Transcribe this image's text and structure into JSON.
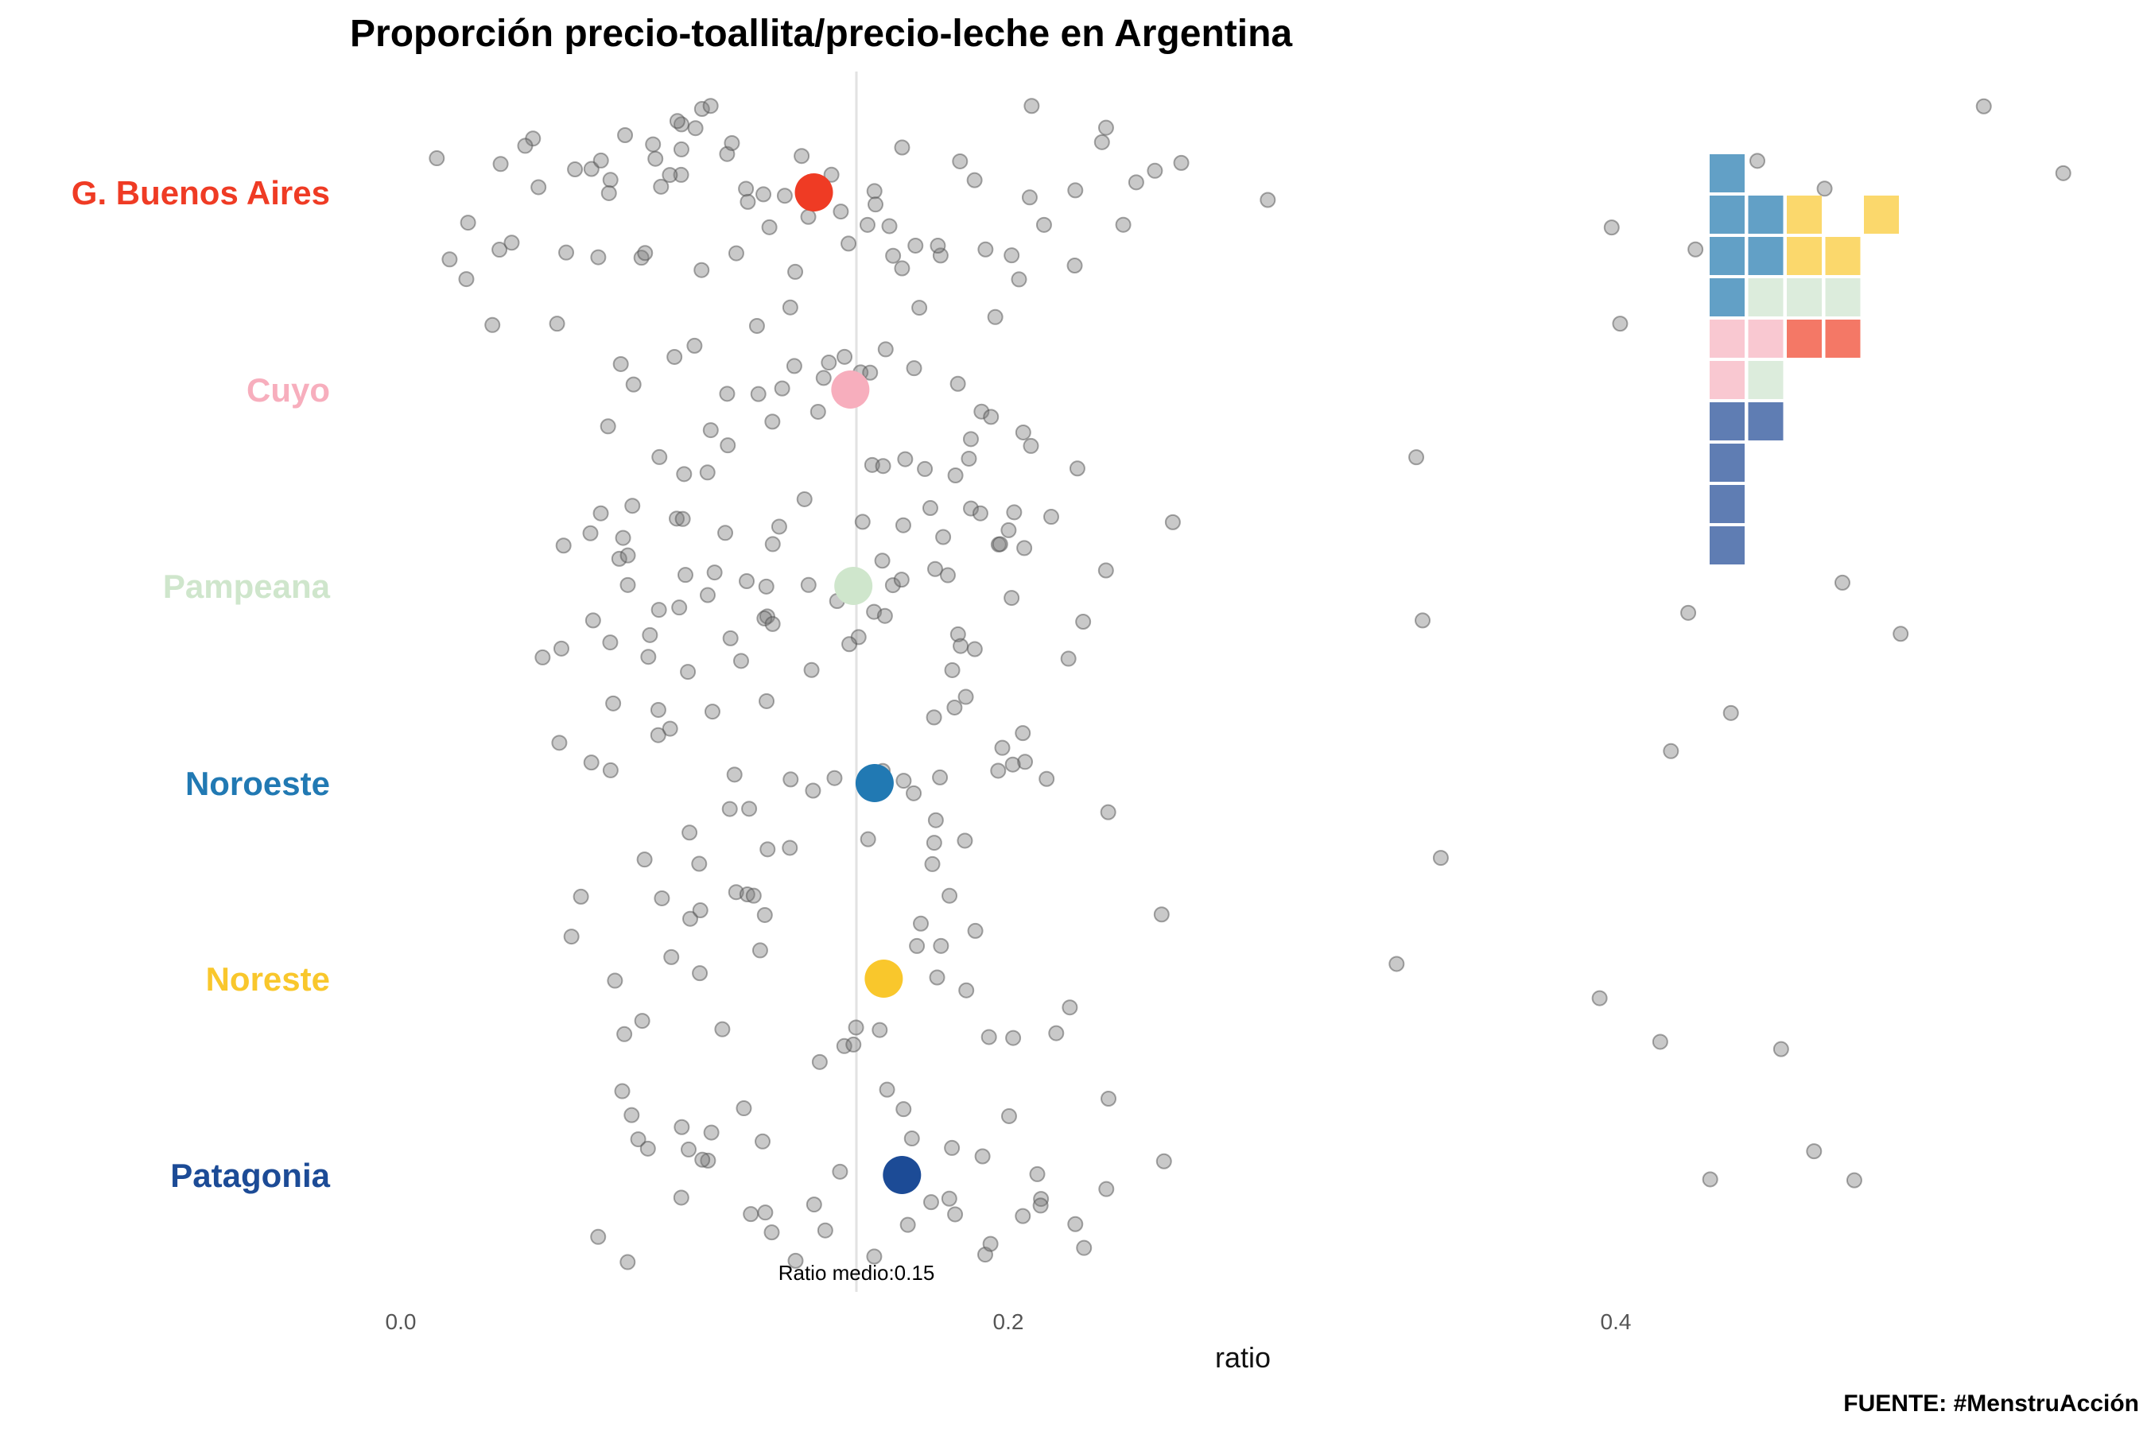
{
  "chart_data": {
    "type": "scatter",
    "title": "Proporción precio-toallita/precio-leche en Argentina",
    "xlabel": "ratio",
    "ylabel": "",
    "xlim": [
      0.0,
      0.57
    ],
    "x_ticks": [
      "0.0",
      "0.2",
      "0.4"
    ],
    "x_tick_values": [
      0.0,
      0.2,
      0.4
    ],
    "grid": false,
    "reference_line": {
      "value": 0.15,
      "label": "Ratio medio:0.15"
    },
    "source": "FUENTE: #MenstruAcción",
    "regions": [
      {
        "name": "G. Buenos Aires",
        "color": "#ef3b24",
        "mean": 0.136,
        "values": [
          0.01,
          0.02,
          0.02,
          0.02,
          0.03,
          0.03,
          0.04,
          0.04,
          0.04,
          0.05,
          0.05,
          0.06,
          0.06,
          0.06,
          0.07,
          0.07,
          0.07,
          0.07,
          0.08,
          0.08,
          0.08,
          0.08,
          0.08,
          0.09,
          0.09,
          0.09,
          0.09,
          0.09,
          0.1,
          0.1,
          0.1,
          0.1,
          0.11,
          0.11,
          0.11,
          0.11,
          0.12,
          0.12,
          0.12,
          0.13,
          0.13,
          0.13,
          0.14,
          0.14,
          0.14,
          0.15,
          0.15,
          0.15,
          0.16,
          0.16,
          0.16,
          0.17,
          0.17,
          0.17,
          0.18,
          0.18,
          0.19,
          0.19,
          0.19,
          0.2,
          0.2,
          0.21,
          0.21,
          0.21,
          0.22,
          0.22,
          0.23,
          0.23,
          0.24,
          0.24,
          0.25,
          0.26,
          0.29,
          0.393,
          0.426,
          0.443,
          0.469,
          0.478,
          0.523,
          0.546
        ]
      },
      {
        "name": "Cuyo",
        "color": "#f7aebd",
        "mean": 0.148,
        "values": [
          0.035,
          0.056,
          0.065,
          0.07,
          0.08,
          0.085,
          0.09,
          0.095,
          0.1,
          0.1,
          0.105,
          0.11,
          0.11,
          0.115,
          0.12,
          0.12,
          0.125,
          0.13,
          0.13,
          0.135,
          0.14,
          0.14,
          0.145,
          0.15,
          0.15,
          0.155,
          0.16,
          0.16,
          0.165,
          0.17,
          0.17,
          0.175,
          0.18,
          0.18,
          0.185,
          0.19,
          0.19,
          0.195,
          0.2,
          0.2,
          0.21,
          0.22,
          0.334,
          0.405
        ]
      },
      {
        "name": "Pampeana",
        "color": "#cfe6cc",
        "mean": 0.149,
        "values": [
          0.05,
          0.05,
          0.055,
          0.06,
          0.06,
          0.065,
          0.07,
          0.07,
          0.075,
          0.075,
          0.08,
          0.08,
          0.08,
          0.085,
          0.085,
          0.09,
          0.09,
          0.09,
          0.095,
          0.1,
          0.1,
          0.1,
          0.105,
          0.11,
          0.11,
          0.115,
          0.115,
          0.12,
          0.12,
          0.12,
          0.125,
          0.13,
          0.13,
          0.135,
          0.14,
          0.14,
          0.145,
          0.145,
          0.15,
          0.15,
          0.155,
          0.16,
          0.16,
          0.165,
          0.17,
          0.17,
          0.175,
          0.175,
          0.18,
          0.18,
          0.18,
          0.185,
          0.19,
          0.19,
          0.195,
          0.195,
          0.2,
          0.2,
          0.2,
          0.205,
          0.21,
          0.21,
          0.22,
          0.23,
          0.23,
          0.26,
          0.34,
          0.42,
          0.478,
          0.497
        ]
      },
      {
        "name": "Noroeste",
        "color": "#2179b3",
        "mean": 0.156,
        "values": [
          0.058,
          0.065,
          0.07,
          0.075,
          0.08,
          0.08,
          0.085,
          0.09,
          0.09,
          0.1,
          0.105,
          0.11,
          0.11,
          0.115,
          0.12,
          0.12,
          0.125,
          0.13,
          0.14,
          0.145,
          0.15,
          0.155,
          0.16,
          0.16,
          0.165,
          0.17,
          0.17,
          0.175,
          0.18,
          0.18,
          0.185,
          0.19,
          0.19,
          0.195,
          0.2,
          0.2,
          0.2,
          0.205,
          0.21,
          0.23,
          0.34,
          0.415,
          0.435
        ]
      },
      {
        "name": "Noreste",
        "color": "#f9c72c",
        "mean": 0.159,
        "values": [
          0.055,
          0.06,
          0.065,
          0.07,
          0.08,
          0.085,
          0.09,
          0.095,
          0.1,
          0.1,
          0.105,
          0.11,
          0.11,
          0.115,
          0.12,
          0.125,
          0.14,
          0.145,
          0.15,
          0.155,
          0.16,
          0.16,
          0.165,
          0.17,
          0.175,
          0.18,
          0.18,
          0.185,
          0.19,
          0.19,
          0.2,
          0.22,
          0.225,
          0.247,
          0.327,
          0.39,
          0.418,
          0.457
        ]
      },
      {
        "name": "Patagonia",
        "color": "#1c4b96",
        "mean": 0.165,
        "values": [
          0.063,
          0.07,
          0.07,
          0.075,
          0.08,
          0.085,
          0.09,
          0.09,
          0.095,
          0.1,
          0.1,
          0.105,
          0.11,
          0.115,
          0.12,
          0.12,
          0.125,
          0.13,
          0.135,
          0.14,
          0.145,
          0.15,
          0.155,
          0.16,
          0.165,
          0.17,
          0.17,
          0.175,
          0.18,
          0.185,
          0.19,
          0.19,
          0.195,
          0.2,
          0.2,
          0.205,
          0.21,
          0.215,
          0.22,
          0.225,
          0.23,
          0.235,
          0.25,
          0.436,
          0.466,
          0.482
        ]
      }
    ],
    "waffle": {
      "columns": 5,
      "rows": 10,
      "colors": {
        "B": "#62a0c6",
        "Y": "#fbd86c",
        "G": "#dcecdc",
        "P": "#f9c8d1",
        "R": "#f47866",
        "D": "#5f7db3"
      },
      "grid": [
        "B....",
        "BBY.Y",
        "BBYY.",
        "BGGG.",
        "PPRR.",
        "PG...",
        "DD...",
        "D....",
        "D....",
        "D...."
      ]
    }
  }
}
